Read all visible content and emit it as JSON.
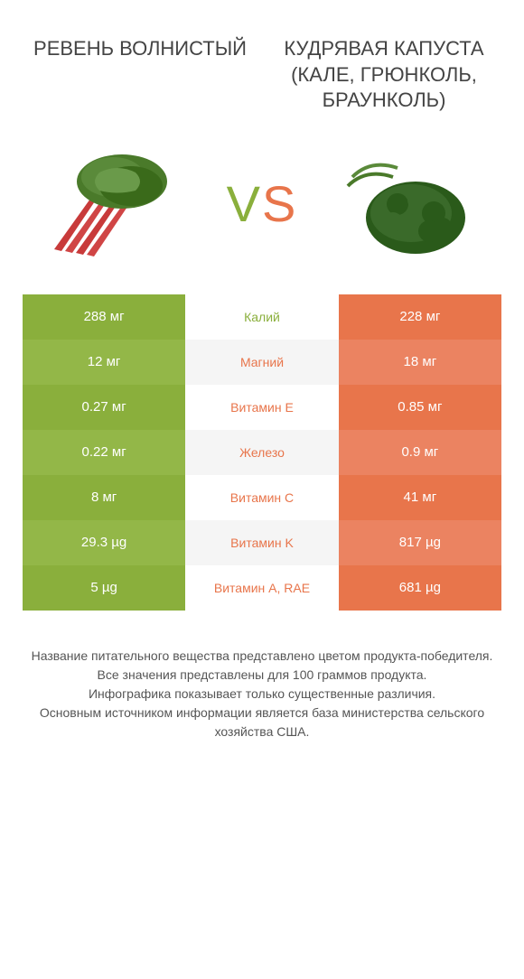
{
  "left_title": "РЕВЕНЬ ВОЛНИСТЫЙ",
  "right_title": "КУДРЯВАЯ КАПУСТА (КАЛЕ, ГРЮНКОЛЬ, БРАУНКОЛЬ)",
  "vs_v": "V",
  "vs_s": "S",
  "colors": {
    "left": "#8aaf3c",
    "left_alt": "#93b748",
    "right": "#e8754b",
    "right_alt": "#eb8361",
    "mid_alt": "#f5f5f5"
  },
  "rows": [
    {
      "left": "288 мг",
      "mid": "Калий",
      "right": "228 мг",
      "winner": "left",
      "alt": false
    },
    {
      "left": "12 мг",
      "mid": "Магний",
      "right": "18 мг",
      "winner": "right",
      "alt": true
    },
    {
      "left": "0.27 мг",
      "mid": "Витамин E",
      "right": "0.85 мг",
      "winner": "right",
      "alt": false
    },
    {
      "left": "0.22 мг",
      "mid": "Железо",
      "right": "0.9 мг",
      "winner": "right",
      "alt": true
    },
    {
      "left": "8 мг",
      "mid": "Витамин C",
      "right": "41 мг",
      "winner": "right",
      "alt": false
    },
    {
      "left": "29.3 µg",
      "mid": "Витамин K",
      "right": "817 µg",
      "winner": "right",
      "alt": true
    },
    {
      "left": "5 µg",
      "mid": "Витамин A, RAE",
      "right": "681 µg",
      "winner": "right",
      "alt": false
    }
  ],
  "footer_lines": [
    "Название питательного вещества представлено цветом продукта-победителя.",
    "Все значения представлены для 100 граммов продукта.",
    "Инфографика показывает только существенные различия.",
    "Основным источником информации является база министерства сельского хозяйства США."
  ]
}
